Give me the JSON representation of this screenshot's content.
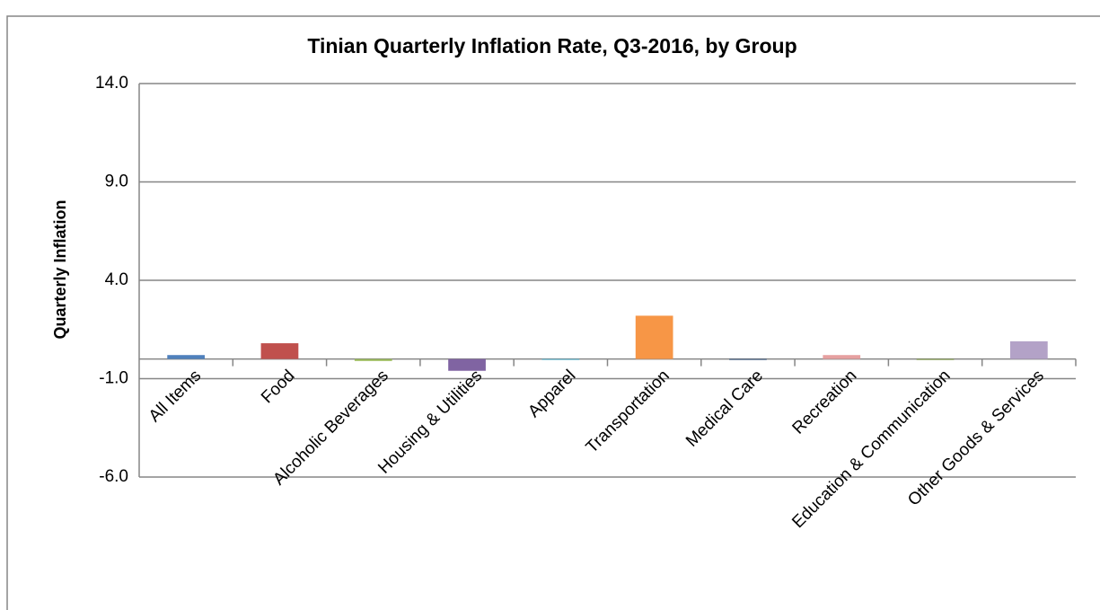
{
  "chart_data": {
    "type": "bar",
    "title": "Tinian Quarterly Inflation Rate, Q3-2016, by Group",
    "y_label": "Quarterly Inflation",
    "categories": [
      "All Items",
      "Food",
      "Alcoholic Beverages",
      "Housing & Utilities",
      "Apparel",
      "Transportation",
      "Medical Care",
      "Recreation",
      "Education & Communication",
      "Other Goods & Services"
    ],
    "values": [
      0.2,
      0.8,
      -0.1,
      -0.6,
      0,
      2.2,
      0,
      0.2,
      0,
      0.9
    ],
    "colors": [
      "#4f81bd",
      "#c0504d",
      "#9bbb59",
      "#8064a2",
      "#4bacc6",
      "#f79646",
      "#2c4d75",
      "#e6a0a0",
      "#77933c",
      "#b3a2c7"
    ],
    "ylim": [
      -6,
      14
    ],
    "yticks": [
      {
        "value": 14,
        "label": "14.0"
      },
      {
        "value": 9,
        "label": "9.0"
      },
      {
        "value": 4,
        "label": "4.0"
      },
      {
        "value": -1,
        "label": "-1.0"
      },
      {
        "value": -6,
        "label": "-6.0"
      }
    ],
    "grid": true
  }
}
